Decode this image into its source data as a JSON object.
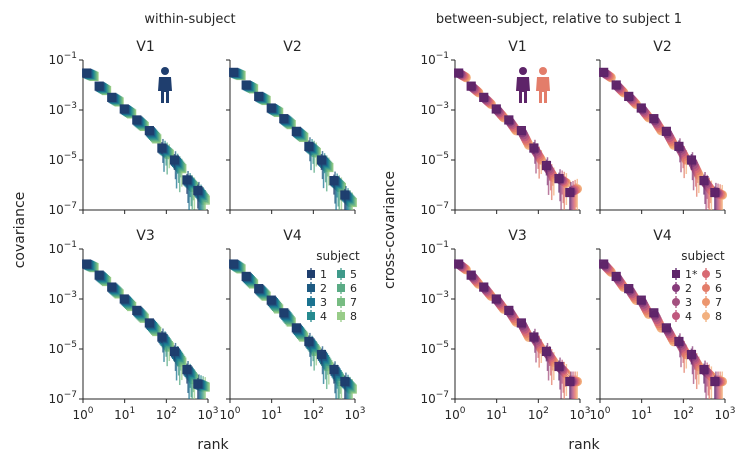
{
  "figure": {
    "left_group_title": "within-subject",
    "right_group_title": "between-subject, relative to subject 1",
    "left_ylabel": "covariance",
    "right_ylabel": "cross-covariance",
    "xlabel": "rank"
  },
  "axes": {
    "x_tick_base": "10",
    "x_tick_exponents": [
      "0",
      "1",
      "2",
      "3"
    ],
    "y_tick_base": "10",
    "y_tick_exponents": [
      "−1",
      "−3",
      "−5",
      "−7"
    ]
  },
  "legends": {
    "within": {
      "title": "subject",
      "entries": [
        "1",
        "2",
        "3",
        "4",
        "5",
        "6",
        "7",
        "8"
      ],
      "colors": [
        "#1f3e6e",
        "#1d5a82",
        "#1a7390",
        "#268a8f",
        "#3f9a8a",
        "#5aab85",
        "#77bc82",
        "#98cc88"
      ]
    },
    "between": {
      "title": "subject",
      "entries": [
        "1*",
        "2",
        "3",
        "4",
        "5",
        "6",
        "7",
        "8"
      ],
      "colors": [
        "#5e2469",
        "#873b7a",
        "#a3507f",
        "#c0587d",
        "#d86a73",
        "#e37d6a",
        "#ec966e",
        "#f2b07e"
      ]
    }
  },
  "chart_data": [
    {
      "type": "scatter",
      "panel": "within-V1",
      "title": "V1",
      "group": "within-subject",
      "x_scale": "log",
      "y_scale": "log",
      "xlim": [
        1,
        1000
      ],
      "ylim": [
        1e-07,
        0.1
      ],
      "x": [
        1.5,
        3,
        6,
        12,
        24,
        48,
        96,
        192,
        384,
        700
      ],
      "series": [
        {
          "name": "1",
          "values": [
            0.03,
            0.009,
            0.0032,
            0.0011,
            0.0004,
            0.00015,
            3e-05,
            1e-05,
            1.6e-06,
            6e-07
          ]
        },
        {
          "name": "8",
          "values": [
            0.022,
            0.006,
            0.0021,
            0.0007,
            0.00022,
            7e-05,
            1.7e-05,
            4.5e-06,
            8e-07,
            2.5e-07
          ]
        }
      ]
    },
    {
      "type": "scatter",
      "panel": "within-V2",
      "title": "V2",
      "group": "within-subject",
      "x_scale": "log",
      "y_scale": "log",
      "xlim": [
        1,
        1000
      ],
      "ylim": [
        1e-07,
        0.1
      ],
      "x": [
        1.5,
        3,
        6,
        12,
        24,
        48,
        96,
        192,
        384,
        700
      ],
      "series": [
        {
          "name": "1",
          "values": [
            0.032,
            0.01,
            0.0035,
            0.0012,
            0.00045,
            0.00014,
            3.5e-05,
            1e-05,
            1.5e-06,
            4e-07
          ]
        },
        {
          "name": "8",
          "values": [
            0.024,
            0.007,
            0.0024,
            0.0008,
            0.00026,
            8e-05,
            2e-05,
            5e-06,
            8e-07,
            2e-07
          ]
        }
      ]
    },
    {
      "type": "scatter",
      "panel": "within-V3",
      "title": "V3",
      "group": "within-subject",
      "x_scale": "log",
      "y_scale": "log",
      "xlim": [
        1,
        1000
      ],
      "ylim": [
        1e-07,
        0.1
      ],
      "x": [
        1.5,
        3,
        6,
        12,
        24,
        48,
        96,
        192,
        384,
        700
      ],
      "series": [
        {
          "name": "1",
          "values": [
            0.025,
            0.009,
            0.003,
            0.001,
            0.00035,
            0.00011,
            3e-05,
            8e-06,
            1.5e-06,
            4e-07
          ]
        },
        {
          "name": "8",
          "values": [
            0.018,
            0.005,
            0.0016,
            0.0005,
            0.00017,
            5e-05,
            1.2e-05,
            3e-06,
            6e-07,
            3e-07
          ]
        }
      ]
    },
    {
      "type": "scatter",
      "panel": "within-V4",
      "title": "V4",
      "group": "within-subject",
      "x_scale": "log",
      "y_scale": "log",
      "xlim": [
        1,
        1000
      ],
      "ylim": [
        1e-07,
        0.1
      ],
      "x": [
        1.5,
        3,
        6,
        12,
        24,
        48,
        96,
        192,
        384,
        700
      ],
      "series": [
        {
          "name": "1",
          "values": [
            0.025,
            0.008,
            0.0026,
            0.0009,
            0.00028,
            7e-05,
            2e-05,
            6e-06,
            1.5e-06,
            5e-07
          ]
        },
        {
          "name": "8",
          "values": [
            0.016,
            0.004,
            0.0013,
            0.0004,
            0.00012,
            3e-05,
            8e-06,
            2e-06,
            5e-07,
            2.5e-07
          ]
        }
      ]
    },
    {
      "type": "scatter",
      "panel": "between-V1",
      "title": "V1",
      "group": "between-subject, relative to subject 1",
      "x_scale": "log",
      "y_scale": "log",
      "xlim": [
        1,
        1000
      ],
      "ylim": [
        1e-07,
        0.1
      ],
      "x": [
        1.5,
        3,
        6,
        12,
        24,
        48,
        96,
        192,
        384,
        700
      ],
      "series": [
        {
          "name": "1*",
          "values": [
            0.03,
            0.009,
            0.0032,
            0.0011,
            0.0004,
            0.00015,
            3e-05,
            6e-06,
            1.8e-06,
            5e-07
          ]
        },
        {
          "name": "8",
          "values": [
            0.02,
            0.005,
            0.0017,
            0.0005,
            0.00015,
            4e-05,
            1e-05,
            2e-06,
            1.2e-06,
            7e-07
          ]
        }
      ]
    },
    {
      "type": "scatter",
      "panel": "between-V2",
      "title": "V2",
      "group": "between-subject, relative to subject 1",
      "x_scale": "log",
      "y_scale": "log",
      "xlim": [
        1,
        1000
      ],
      "ylim": [
        1e-07,
        0.1
      ],
      "x": [
        1.5,
        3,
        6,
        12,
        24,
        48,
        96,
        192,
        384,
        700
      ],
      "series": [
        {
          "name": "1*",
          "values": [
            0.032,
            0.01,
            0.0035,
            0.0012,
            0.00045,
            0.00014,
            3.5e-05,
            1e-05,
            1.5e-06,
            5e-07
          ]
        },
        {
          "name": "8",
          "values": [
            0.02,
            0.005,
            0.0017,
            0.0005,
            0.00015,
            4e-05,
            1e-05,
            2.5e-06,
            6e-07,
            4e-07
          ]
        }
      ]
    },
    {
      "type": "scatter",
      "panel": "between-V3",
      "title": "V3",
      "group": "between-subject, relative to subject 1",
      "x_scale": "log",
      "y_scale": "log",
      "xlim": [
        1,
        1000
      ],
      "ylim": [
        1e-07,
        0.1
      ],
      "x": [
        1.5,
        3,
        6,
        12,
        24,
        48,
        96,
        192,
        384,
        700
      ],
      "series": [
        {
          "name": "1*",
          "values": [
            0.025,
            0.009,
            0.003,
            0.001,
            0.00035,
            0.00011,
            3e-05,
            8e-06,
            2e-06,
            5e-07
          ]
        },
        {
          "name": "8",
          "values": [
            0.015,
            0.004,
            0.0013,
            0.0004,
            0.00012,
            3e-05,
            1e-05,
            3e-06,
            1e-06,
            5e-07
          ]
        }
      ]
    },
    {
      "type": "scatter",
      "panel": "between-V4",
      "title": "V4",
      "group": "between-subject, relative to subject 1",
      "x_scale": "log",
      "y_scale": "log",
      "xlim": [
        1,
        1000
      ],
      "ylim": [
        1e-07,
        0.1
      ],
      "x": [
        1.5,
        3,
        6,
        12,
        24,
        48,
        96,
        192,
        384,
        700
      ],
      "series": [
        {
          "name": "1*",
          "values": [
            0.025,
            0.008,
            0.0026,
            0.0009,
            0.00028,
            7e-05,
            2e-05,
            6e-06,
            1.5e-06,
            5e-07
          ]
        },
        {
          "name": "8",
          "values": [
            0.012,
            0.003,
            0.0009,
            0.00025,
            7e-05,
            2e-05,
            6e-06,
            2e-06,
            8e-07,
            5e-07
          ]
        }
      ]
    }
  ]
}
